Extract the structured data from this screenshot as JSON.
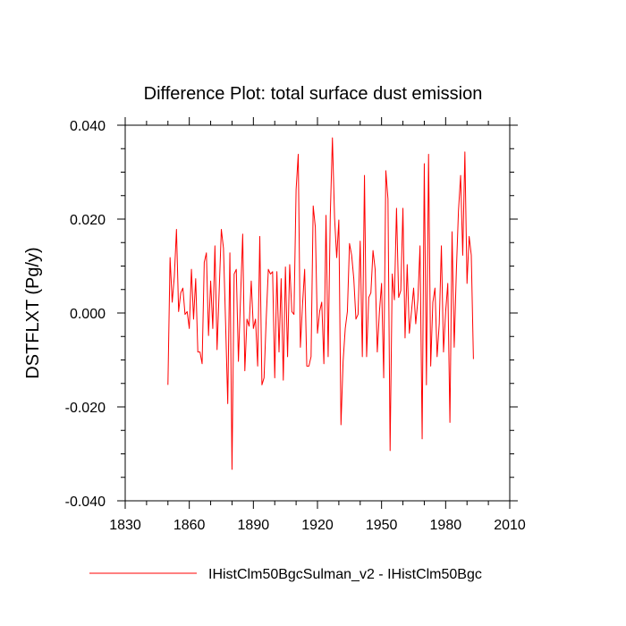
{
  "chart_data": {
    "type": "line",
    "title": "Difference Plot: total surface dust emission",
    "xlabel": "",
    "ylabel": "DSTFLXT  (Pg/y)",
    "xlim": [
      1830,
      2010
    ],
    "ylim": [
      -0.04,
      0.04
    ],
    "x_ticks": [
      1830,
      1860,
      1890,
      1920,
      1950,
      1980,
      2010
    ],
    "y_ticks": [
      -0.04,
      -0.02,
      0.0,
      0.02,
      0.04
    ],
    "x_tick_labels": [
      "1830",
      "1860",
      "1890",
      "1920",
      "1950",
      "1980",
      "2010"
    ],
    "y_tick_labels": [
      "-0.040",
      "-0.020",
      "0.000",
      "0.020",
      "0.040"
    ],
    "grid": false,
    "legend_position": "bottom",
    "series": [
      {
        "name": "IHistClm50BgcSulman_v2 - IHistClm50Bgc",
        "color": "#ff0000",
        "x_start": 1850,
        "x_step": 1,
        "values": [
          -0.0153,
          0.0118,
          0.0023,
          0.0078,
          0.0178,
          0.0003,
          0.0043,
          0.0053,
          -0.0003,
          0.0003,
          -0.0033,
          0.0093,
          -0.0013,
          0.0073,
          -0.0083,
          -0.0083,
          -0.0108,
          0.0108,
          0.0128,
          -0.0048,
          0.0068,
          -0.0033,
          0.0143,
          -0.0078,
          0.0048,
          0.0178,
          0.0138,
          -0.0023,
          -0.0193,
          0.0128,
          -0.0333,
          0.0083,
          0.0093,
          -0.0103,
          0.0033,
          0.0168,
          -0.0123,
          -0.0013,
          -0.0028,
          0.0068,
          -0.0033,
          -0.0013,
          -0.0113,
          0.0163,
          -0.0153,
          -0.0138,
          -0.0013,
          0.0093,
          0.0083,
          0.0088,
          -0.0138,
          0.0088,
          -0.0083,
          0.0073,
          -0.0143,
          0.0098,
          -0.0093,
          0.0103,
          0.0003,
          -0.0003,
          0.0263,
          0.0338,
          -0.0073,
          0.0018,
          0.0093,
          -0.0113,
          -0.0113,
          -0.0093,
          0.0228,
          0.0183,
          -0.0043,
          0.0003,
          0.0023,
          -0.0108,
          0.0208,
          -0.0093,
          0.0208,
          0.0373,
          0.0203,
          0.0118,
          0.0198,
          -0.0238,
          -0.0103,
          -0.0033,
          0.0003,
          0.0148,
          0.0123,
          0.0073,
          -0.0013,
          -0.0003,
          0.0153,
          -0.0093,
          0.0293,
          -0.0093,
          0.0033,
          0.0043,
          0.0133,
          0.0093,
          -0.0083,
          0.0003,
          0.0063,
          -0.0138,
          0.0303,
          0.0243,
          -0.0293,
          0.0083,
          0.0028,
          0.0223,
          0.0033,
          0.0048,
          0.0223,
          -0.0053,
          0.0103,
          -0.0043,
          0.0003,
          0.0053,
          -0.0023,
          0.0028,
          0.0143,
          -0.0268,
          0.0318,
          -0.0153,
          0.0338,
          -0.0113,
          0.0023,
          0.0053,
          -0.0093,
          -0.0023,
          0.0143,
          -0.0083,
          0.0003,
          0.0063,
          -0.0233,
          0.0173,
          -0.0073,
          0.0088,
          0.0218,
          0.0293,
          0.0123,
          0.0343,
          0.0063,
          0.0163,
          0.0123,
          -0.0098
        ]
      }
    ]
  }
}
